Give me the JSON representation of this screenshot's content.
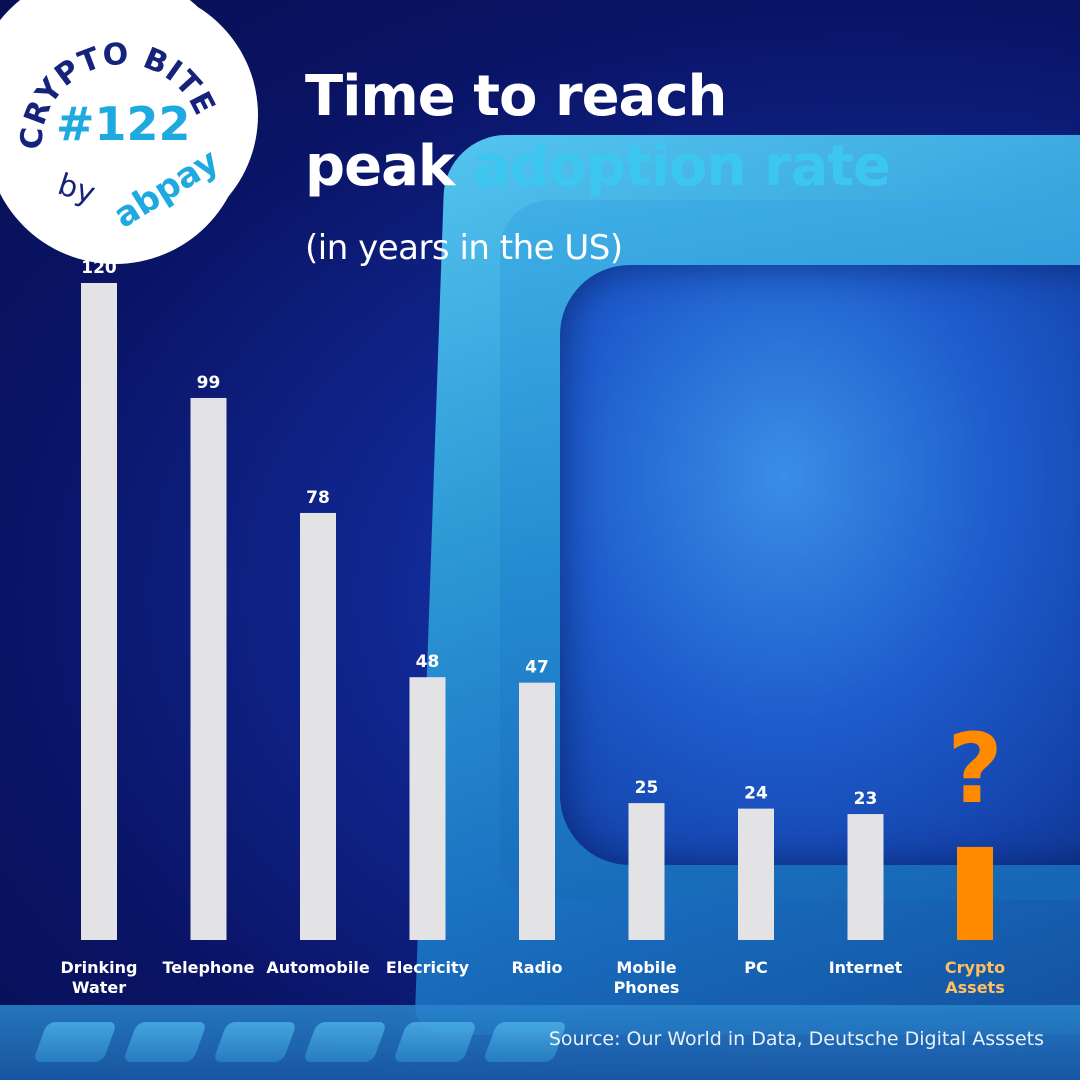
{
  "badge": {
    "series": "CRYPTO BITES",
    "number": "#122",
    "by": "by",
    "brand": "abpay"
  },
  "header": {
    "title_line1": "Time to reach",
    "title_line2_plain": "peak",
    "title_line2_accent": "adoption rate",
    "subtitle": "(in years in the US)"
  },
  "footer": {
    "source": "Source: Our World in Data, Deutsche Digital Asssets"
  },
  "colors": {
    "bar": "#e3e3e6",
    "highlight": "#ff8a00",
    "highlight_label": "#ffc060",
    "accent": "#3cc7f0",
    "label": "#ffffff"
  },
  "chart_data": {
    "type": "bar",
    "title": "Time to reach peak adoption rate",
    "subtitle": "(in years in the US)",
    "categories": [
      [
        "Drinking",
        "Water"
      ],
      [
        "Telephone"
      ],
      [
        "Automobile"
      ],
      [
        "Elecricity"
      ],
      [
        "Radio"
      ],
      [
        "Mobile",
        "Phones"
      ],
      [
        "PC"
      ],
      [
        "Internet"
      ],
      [
        "Crypto",
        "Assets"
      ]
    ],
    "values": [
      120,
      99,
      78,
      48,
      47,
      25,
      24,
      23,
      17
    ],
    "value_labels": [
      "120",
      "99",
      "78",
      "48",
      "47",
      "25",
      "24",
      "23",
      "?"
    ],
    "highlight_index": 8,
    "ylim": [
      0,
      120
    ],
    "grid": false,
    "legend": "none"
  }
}
